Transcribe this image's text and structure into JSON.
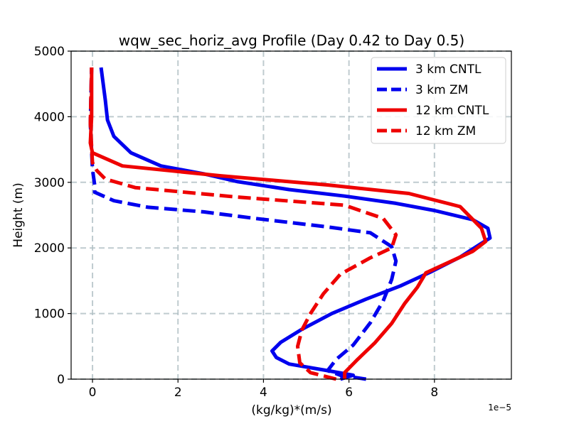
{
  "chart_data": {
    "type": "line",
    "title": "wqw_sec_horiz_avg Profile (Day 0.42 to Day 0.5)",
    "xlabel": "(kg/kg)*(m/s)",
    "ylabel": "Height (m)",
    "x_offset_label": "1e−5",
    "xlim": [
      -0.5,
      9.8
    ],
    "ylim": [
      0,
      5000
    ],
    "xticks": [
      0,
      2,
      4,
      6,
      8
    ],
    "xtick_labels": [
      "0",
      "2",
      "4",
      "6",
      "8"
    ],
    "yticks": [
      0,
      1000,
      2000,
      3000,
      4000,
      5000
    ],
    "ytick_labels": [
      "0",
      "1000",
      "2000",
      "3000",
      "4000",
      "5000"
    ],
    "grid": true,
    "legend_position": "top-right",
    "series": [
      {
        "name": "3 km CNTL",
        "color": "#0000ee",
        "linestyle": "solid",
        "points": [
          [
            5.8,
            0
          ],
          [
            6.1,
            60
          ],
          [
            5.5,
            130
          ],
          [
            4.6,
            230
          ],
          [
            4.3,
            330
          ],
          [
            4.2,
            430
          ],
          [
            4.4,
            560
          ],
          [
            4.9,
            760
          ],
          [
            5.6,
            1000
          ],
          [
            6.4,
            1220
          ],
          [
            7.2,
            1420
          ],
          [
            7.9,
            1630
          ],
          [
            8.6,
            1860
          ],
          [
            9.1,
            2070
          ],
          [
            9.3,
            2150
          ],
          [
            9.25,
            2300
          ],
          [
            8.9,
            2430
          ],
          [
            8.0,
            2570
          ],
          [
            7.1,
            2680
          ],
          [
            5.9,
            2790
          ],
          [
            4.6,
            2890
          ],
          [
            3.4,
            3010
          ],
          [
            2.6,
            3130
          ],
          [
            1.6,
            3250
          ],
          [
            0.9,
            3450
          ],
          [
            0.5,
            3700
          ],
          [
            0.35,
            3950
          ],
          [
            0.3,
            4250
          ],
          [
            0.25,
            4500
          ],
          [
            0.2,
            4750
          ]
        ]
      },
      {
        "name": "3 km ZM",
        "color": "#0000ee",
        "linestyle": "dashed",
        "points": [
          [
            6.4,
            0
          ],
          [
            5.8,
            60
          ],
          [
            5.5,
            130
          ],
          [
            5.7,
            300
          ],
          [
            6.1,
            520
          ],
          [
            6.5,
            860
          ],
          [
            6.8,
            1190
          ],
          [
            7.0,
            1520
          ],
          [
            7.1,
            1800
          ],
          [
            7.0,
            2020
          ],
          [
            6.5,
            2230
          ],
          [
            5.5,
            2320
          ],
          [
            3.8,
            2450
          ],
          [
            2.6,
            2550
          ],
          [
            1.3,
            2620
          ],
          [
            0.5,
            2720
          ],
          [
            0.05,
            2850
          ],
          [
            0.05,
            2960
          ],
          [
            0.0,
            3200
          ],
          [
            -0.05,
            3900
          ],
          [
            -0.02,
            4750
          ]
        ]
      },
      {
        "name": "12 km CNTL",
        "color": "#ee0000",
        "linestyle": "solid",
        "points": [
          [
            5.9,
            0
          ],
          [
            5.9,
            100
          ],
          [
            6.2,
            300
          ],
          [
            6.6,
            550
          ],
          [
            7.0,
            850
          ],
          [
            7.3,
            1150
          ],
          [
            7.6,
            1400
          ],
          [
            7.8,
            1620
          ],
          [
            8.4,
            1800
          ],
          [
            8.9,
            1950
          ],
          [
            9.2,
            2100
          ],
          [
            9.1,
            2300
          ],
          [
            8.6,
            2630
          ],
          [
            7.4,
            2830
          ],
          [
            5.5,
            2960
          ],
          [
            3.0,
            3100
          ],
          [
            0.7,
            3250
          ],
          [
            0.0,
            3450
          ],
          [
            -0.05,
            3600
          ],
          [
            -0.02,
            4000
          ],
          [
            -0.02,
            4750
          ]
        ]
      },
      {
        "name": "12 km ZM",
        "color": "#ee0000",
        "linestyle": "dashed",
        "points": [
          [
            5.7,
            0
          ],
          [
            5.1,
            100
          ],
          [
            4.85,
            250
          ],
          [
            4.8,
            500
          ],
          [
            4.9,
            750
          ],
          [
            5.1,
            1000
          ],
          [
            5.4,
            1300
          ],
          [
            5.8,
            1600
          ],
          [
            6.5,
            1850
          ],
          [
            7.0,
            2000
          ],
          [
            7.1,
            2200
          ],
          [
            6.8,
            2450
          ],
          [
            5.9,
            2650
          ],
          [
            3.3,
            2780
          ],
          [
            1.0,
            2920
          ],
          [
            0.3,
            3050
          ],
          [
            0.1,
            3180
          ],
          [
            0.0,
            3300
          ],
          [
            -0.05,
            3900
          ],
          [
            -0.02,
            4750
          ]
        ]
      }
    ]
  }
}
